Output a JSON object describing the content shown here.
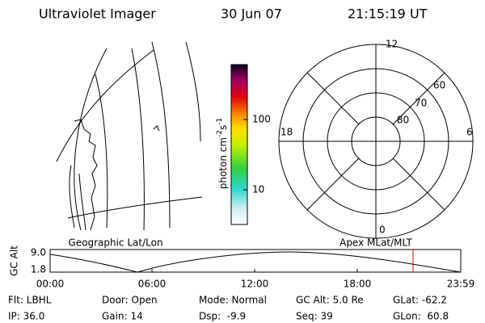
{
  "header": {
    "title": "Ultraviolet Imager",
    "date": "30 Jun 07",
    "time": "21:15:19 UT"
  },
  "colorbar": {
    "label": [
      "photon cm",
      "-2",
      "s",
      "-1"
    ],
    "ticks": [
      "100",
      "10"
    ]
  },
  "polar": {
    "mlt_labels": [
      "12",
      "18",
      "6",
      "0"
    ],
    "lat_labels": [
      "60",
      "70",
      "80"
    ]
  },
  "panel_labels": {
    "left": "Geographic Lat/Lon",
    "right": "Apex MLat/MLT"
  },
  "altitude_plot": {
    "y_label": "GC Alt",
    "y_ticks": [
      "9.0",
      "1.8"
    ],
    "x_ticks": [
      "00:00",
      "06:00",
      "12:00",
      "18:00",
      "23:59"
    ]
  },
  "status": [
    [
      "Flt: LBHL",
      "Door: Open",
      "Mode: Normal",
      "GC Alt: 5.0 Re",
      "GLat: -62.2"
    ],
    [
      "IP: 36.0",
      "Gain: 14",
      "Dsp:  -9.9",
      "Seq: 39",
      "GLon:  60.8"
    ]
  ]
}
